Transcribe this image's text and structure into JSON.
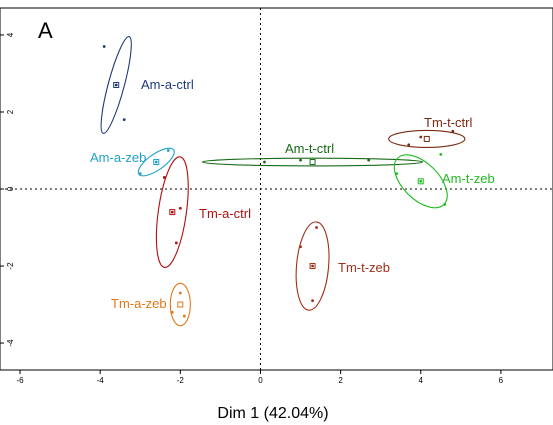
{
  "chart_data": {
    "type": "scatter",
    "panel_label": "A",
    "xlabel": "Dim 1 (42.04%)",
    "ylabel": "",
    "xlim": [
      -6.5,
      7.3
    ],
    "ylim": [
      -4.7,
      4.7
    ],
    "x_ticks": [
      -6,
      -4,
      -2,
      0,
      2,
      4,
      6
    ],
    "y_ticks": [
      -4,
      -2,
      0,
      2,
      4
    ],
    "reference_lines": {
      "x": 0,
      "y": 0,
      "style": "dotted"
    },
    "grid": false,
    "groups": [
      {
        "label": "Am-a-ctrl",
        "color": "#1f3a7a",
        "centroid": [
          -3.6,
          2.7
        ],
        "ellipse": {
          "cx": -3.6,
          "cy": 2.7,
          "rx": 0.2,
          "ry": 1.3,
          "angle": 15
        },
        "points": [
          [
            -3.9,
            3.7
          ],
          [
            -3.6,
            2.7
          ],
          [
            -3.4,
            1.8
          ]
        ]
      },
      {
        "label": "Am-a-zeb",
        "color": "#1fa3c8",
        "centroid": [
          -2.6,
          0.7
        ],
        "ellipse": {
          "cx": -2.6,
          "cy": 0.7,
          "rx": 0.2,
          "ry": 0.55,
          "angle": 55
        },
        "points": [
          [
            -3.0,
            0.4
          ],
          [
            -2.6,
            0.7
          ],
          [
            -2.3,
            1.0
          ]
        ]
      },
      {
        "label": "Tm-a-ctrl",
        "color": "#b01010",
        "centroid": [
          -2.2,
          -0.6
        ],
        "ellipse": {
          "cx": -2.2,
          "cy": -0.6,
          "rx": 0.35,
          "ry": 1.45,
          "angle": 8
        },
        "points": [
          [
            -2.4,
            0.3
          ],
          [
            -2.2,
            -0.6
          ],
          [
            -2.1,
            -1.4
          ],
          [
            -2.0,
            -0.5
          ]
        ]
      },
      {
        "label": "Am-t-ctrl",
        "color": "#1a6b1a",
        "centroid": [
          1.3,
          0.7
        ],
        "ellipse": {
          "cx": 1.3,
          "cy": 0.7,
          "rx": 2.75,
          "ry": 0.1,
          "angle": 0
        },
        "points": [
          [
            0.1,
            0.7
          ],
          [
            1.0,
            0.75
          ],
          [
            2.7,
            0.75
          ]
        ]
      },
      {
        "label": "Tm-t-ctrl",
        "color": "#7a2a10",
        "centroid": [
          4.15,
          1.3
        ],
        "ellipse": {
          "cx": 4.15,
          "cy": 1.3,
          "rx": 0.95,
          "ry": 0.22,
          "angle": 0
        },
        "points": [
          [
            3.7,
            1.15
          ],
          [
            4.8,
            1.5
          ],
          [
            4.0,
            1.35
          ]
        ]
      },
      {
        "label": "Am-t-zeb",
        "color": "#22bb22",
        "centroid": [
          4.0,
          0.2
        ],
        "ellipse": {
          "cx": 4.0,
          "cy": 0.2,
          "rx": 0.45,
          "ry": 0.85,
          "angle": -45
        },
        "points": [
          [
            3.4,
            0.4
          ],
          [
            4.6,
            -0.4
          ],
          [
            4.5,
            0.9
          ],
          [
            4.0,
            0.2
          ]
        ]
      },
      {
        "label": "Tm-t-zeb",
        "color": "#a03018",
        "centroid": [
          1.3,
          -2.0
        ],
        "ellipse": {
          "cx": 1.3,
          "cy": -2.0,
          "rx": 0.4,
          "ry": 1.15,
          "angle": 5
        },
        "points": [
          [
            1.0,
            -1.5
          ],
          [
            1.3,
            -2.0
          ],
          [
            1.3,
            -2.9
          ],
          [
            1.4,
            -1.0
          ]
        ]
      },
      {
        "label": "Tm-a-zeb",
        "color": "#e07818",
        "centroid": [
          -2.0,
          -3.0
        ],
        "ellipse": {
          "cx": -2.0,
          "cy": -3.0,
          "rx": 0.25,
          "ry": 0.55,
          "angle": 0
        },
        "points": [
          [
            -2.2,
            -3.2
          ],
          [
            -1.9,
            -3.3
          ],
          [
            -2.0,
            -2.7
          ]
        ]
      }
    ]
  }
}
